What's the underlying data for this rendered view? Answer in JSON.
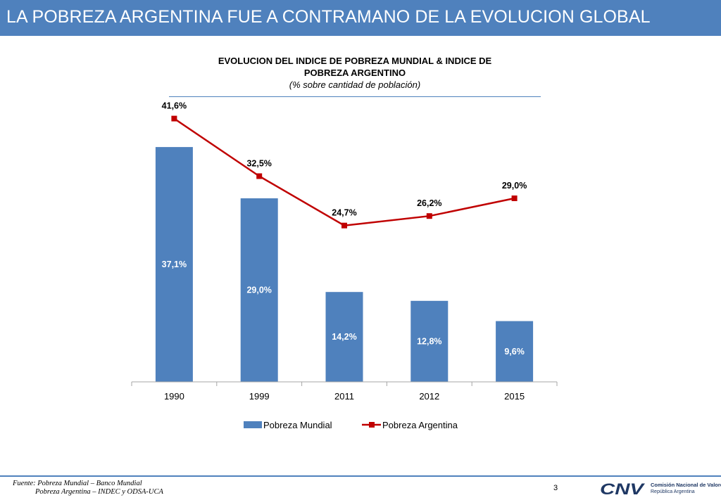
{
  "header": {
    "title": "LA POBREZA ARGENTINA FUE A CONTRAMANO DE LA EVOLUCION GLOBAL"
  },
  "chart_heading": {
    "line1": "EVOLUCION DEL INDICE DE POBREZA MUNDIAL & INDICE DE",
    "line2": "POBREZA ARGENTINO",
    "subtitle": "(% sobre cantidad de población)"
  },
  "colors": {
    "accent": "#4f81bd",
    "bars": "#4f81bd",
    "line": "#c00000"
  },
  "chart_data": {
    "type": "bar+line",
    "title": "EVOLUCION DEL INDICE DE POBREZA MUNDIAL & INDICE DE POBREZA ARGENTINO",
    "subtitle": "(% sobre cantidad de población)",
    "categories": [
      "1990",
      "1999",
      "2011",
      "2012",
      "2015"
    ],
    "series": [
      {
        "name": "Pobreza Mundial",
        "kind": "bar",
        "values": [
          37.1,
          29.0,
          14.2,
          12.8,
          9.6
        ],
        "labels": [
          "37,1%",
          "29,0%",
          "14,2%",
          "12,8%",
          "9,6%"
        ]
      },
      {
        "name": "Pobreza Argentina",
        "kind": "line",
        "values": [
          41.6,
          32.5,
          24.7,
          26.2,
          29.0
        ],
        "labels": [
          "41,6%",
          "32,5%",
          "24,7%",
          "26,2%",
          "29,0%"
        ]
      }
    ],
    "xlabel": "",
    "ylabel": "",
    "ylim": [
      0,
      45
    ],
    "legend_position": "bottom",
    "grid": false
  },
  "footer": {
    "source_line1": "Fuente: Pobreza Mundial – Banco Mundial",
    "source_line2": "Pobreza Argentina – INDEC y ODSA-UCA",
    "page_number": "3",
    "logo_text": "CNV",
    "org_name": "Comisión Nacional de Valores",
    "country": "República Argentina"
  }
}
